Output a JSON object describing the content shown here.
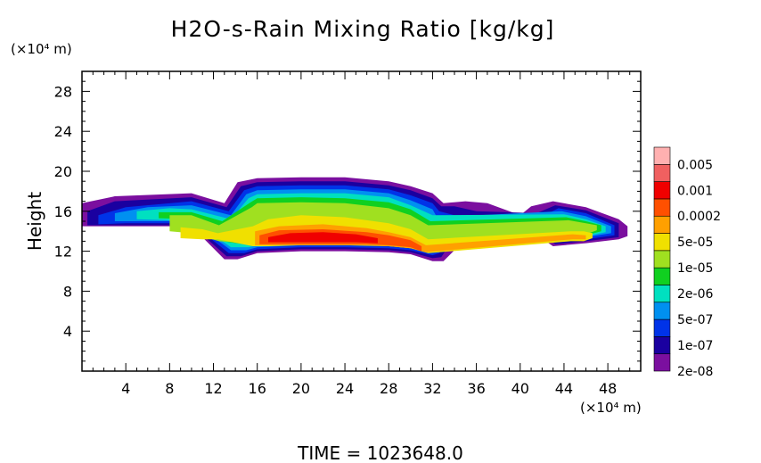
{
  "chart_data": {
    "type": "heatmap",
    "title": "H2O-s-Rain Mixing Ratio [kg/kg]",
    "ylabel": "Height",
    "xlabel": "",
    "x_unit": "(×10⁴ m)",
    "y_unit": "(×10⁴ m)",
    "xlim": [
      0,
      51
    ],
    "ylim": [
      0,
      30
    ],
    "xticks": [
      "4",
      "8",
      "12",
      "16",
      "20",
      "24",
      "28",
      "32",
      "36",
      "40",
      "44",
      "48"
    ],
    "yticks": [
      "4",
      "8",
      "12",
      "16",
      "20",
      "24",
      "28"
    ],
    "colorbar": {
      "labels": [
        "0.005",
        "0.001",
        "0.0002",
        "5e-05",
        "1e-05",
        "2e-06",
        "5e-07",
        "1e-07",
        "2e-08"
      ],
      "colors": [
        "#7b0f9f",
        "#1a00a0",
        "#0033e8",
        "#0090f0",
        "#00e0c0",
        "#10d020",
        "#a0e020",
        "#f0e000",
        "#ffa000",
        "#ff5000",
        "#f00000",
        "#f06060",
        "#ffb0b0"
      ]
    },
    "cloud_layers": [
      {
        "level": 0,
        "segments": [
          [
            0.0,
            14.5,
            16.8
          ],
          [
            3.0,
            14.5,
            17.5
          ],
          [
            10.0,
            14.5,
            17.8
          ],
          [
            13.0,
            11.2,
            16.8
          ],
          [
            14.2,
            11.2,
            18.9
          ],
          [
            16.0,
            11.8,
            19.3
          ],
          [
            20.0,
            12.0,
            19.4
          ],
          [
            24.0,
            12.0,
            19.4
          ],
          [
            28.0,
            11.9,
            19.0
          ],
          [
            30.0,
            11.7,
            18.5
          ],
          [
            32.0,
            11.0,
            17.8
          ],
          [
            33.0,
            11.0,
            16.8
          ],
          [
            35.0,
            13.2,
            17.0
          ],
          [
            37.0,
            14.0,
            16.8
          ],
          [
            40.0,
            14.0,
            15.6
          ],
          [
            41.0,
            14.0,
            16.5
          ],
          [
            43.0,
            12.5,
            17.0
          ],
          [
            46.0,
            12.8,
            16.4
          ],
          [
            49.0,
            13.2,
            15.2
          ],
          [
            49.8,
            13.5,
            14.5
          ]
        ]
      },
      {
        "level": 1,
        "segments": [
          [
            0.5,
            14.6,
            16.0
          ],
          [
            3.0,
            14.6,
            17.0
          ],
          [
            10.0,
            14.6,
            17.4
          ],
          [
            13.2,
            11.5,
            16.4
          ],
          [
            14.5,
            11.5,
            18.5
          ],
          [
            16.0,
            12.0,
            18.9
          ],
          [
            20.0,
            12.2,
            19.0
          ],
          [
            24.0,
            12.2,
            19.0
          ],
          [
            28.0,
            12.1,
            18.6
          ],
          [
            30.0,
            11.9,
            18.1
          ],
          [
            32.0,
            11.3,
            17.3
          ],
          [
            32.8,
            11.4,
            16.5
          ],
          [
            34.0,
            13.4,
            16.5
          ],
          [
            36.0,
            14.1,
            16.0
          ],
          [
            41.5,
            14.2,
            15.8
          ],
          [
            43.2,
            12.7,
            16.6
          ],
          [
            46.0,
            13.0,
            16.1
          ],
          [
            49.0,
            13.4,
            14.8
          ]
        ]
      },
      {
        "level": 2,
        "segments": [
          [
            1.5,
            14.7,
            15.6
          ],
          [
            4.0,
            14.8,
            16.4
          ],
          [
            10.0,
            14.8,
            17.0
          ],
          [
            13.4,
            11.8,
            16.0
          ],
          [
            14.8,
            11.8,
            18.1
          ],
          [
            16.0,
            12.2,
            18.5
          ],
          [
            20.0,
            12.4,
            18.6
          ],
          [
            24.0,
            12.4,
            18.6
          ],
          [
            28.0,
            12.3,
            18.2
          ],
          [
            30.0,
            12.1,
            17.6
          ],
          [
            32.0,
            11.6,
            16.8
          ],
          [
            32.6,
            11.8,
            16.0
          ],
          [
            34.0,
            13.6,
            15.6
          ],
          [
            42.0,
            14.4,
            15.5
          ],
          [
            43.5,
            12.9,
            16.3
          ],
          [
            46.0,
            13.2,
            15.8
          ],
          [
            48.6,
            13.6,
            14.6
          ]
        ]
      },
      {
        "level": 3,
        "segments": [
          [
            3.0,
            15.0,
            15.8
          ],
          [
            6.0,
            15.0,
            16.4
          ],
          [
            10.0,
            15.0,
            16.6
          ],
          [
            13.6,
            12.1,
            15.6
          ],
          [
            15.0,
            12.1,
            17.7
          ],
          [
            16.0,
            12.4,
            18.1
          ],
          [
            20.0,
            12.6,
            18.2
          ],
          [
            24.0,
            12.6,
            18.2
          ],
          [
            28.0,
            12.5,
            17.8
          ],
          [
            30.0,
            12.3,
            17.1
          ],
          [
            32.0,
            11.9,
            16.2
          ],
          [
            32.4,
            12.2,
            15.4
          ],
          [
            43.8,
            13.1,
            16.0
          ],
          [
            46.0,
            13.4,
            15.5
          ],
          [
            48.3,
            13.8,
            14.5
          ]
        ]
      },
      {
        "level": 4,
        "segments": [
          [
            5.0,
            15.2,
            16.0
          ],
          [
            8.0,
            15.1,
            16.3
          ],
          [
            10.0,
            15.1,
            16.2
          ],
          [
            13.6,
            12.4,
            15.2
          ],
          [
            15.2,
            12.4,
            17.3
          ],
          [
            16.0,
            12.6,
            17.7
          ],
          [
            20.0,
            12.8,
            17.8
          ],
          [
            24.0,
            12.8,
            17.8
          ],
          [
            28.0,
            12.7,
            17.4
          ],
          [
            30.0,
            12.5,
            16.6
          ],
          [
            32.0,
            12.2,
            15.6
          ],
          [
            44.0,
            13.3,
            15.7
          ],
          [
            46.0,
            13.5,
            15.2
          ],
          [
            47.8,
            13.9,
            14.5
          ]
        ]
      },
      {
        "level": 5,
        "segments": [
          [
            7.0,
            15.3,
            15.9
          ],
          [
            10.0,
            15.2,
            15.9
          ],
          [
            12.8,
            13.0,
            15.0
          ],
          [
            15.4,
            12.6,
            16.9
          ],
          [
            16.0,
            12.8,
            17.3
          ],
          [
            20.0,
            13.0,
            17.4
          ],
          [
            24.0,
            13.0,
            17.3
          ],
          [
            28.0,
            12.9,
            16.9
          ],
          [
            30.0,
            12.7,
            16.2
          ],
          [
            31.8,
            12.4,
            15.0
          ],
          [
            44.2,
            13.4,
            15.4
          ],
          [
            46.0,
            13.6,
            15.0
          ],
          [
            47.4,
            14.0,
            14.6
          ]
        ]
      },
      {
        "level": 6,
        "segments": [
          [
            8.0,
            14.0,
            15.6
          ],
          [
            10.0,
            13.8,
            15.6
          ],
          [
            12.5,
            13.0,
            14.6
          ],
          [
            15.5,
            12.8,
            16.4
          ],
          [
            16.0,
            12.9,
            16.8
          ],
          [
            20.0,
            13.1,
            16.9
          ],
          [
            24.0,
            13.1,
            16.8
          ],
          [
            28.0,
            13.0,
            16.3
          ],
          [
            30.0,
            12.9,
            15.6
          ],
          [
            31.6,
            12.6,
            14.6
          ],
          [
            44.4,
            13.5,
            15.1
          ],
          [
            46.0,
            13.7,
            14.8
          ],
          [
            47.0,
            14.1,
            14.6
          ]
        ]
      },
      {
        "level": 7,
        "segments": [
          [
            9.0,
            13.3,
            14.4
          ],
          [
            11.0,
            13.2,
            14.2
          ],
          [
            12.4,
            13.2,
            13.8
          ],
          [
            15.6,
            12.5,
            14.5
          ],
          [
            17.0,
            12.5,
            15.2
          ],
          [
            20.0,
            12.6,
            15.6
          ],
          [
            24.0,
            12.6,
            15.4
          ],
          [
            28.0,
            12.5,
            14.8
          ],
          [
            30.0,
            12.3,
            14.2
          ],
          [
            31.6,
            11.8,
            13.2
          ],
          [
            44.6,
            13.0,
            14.0
          ],
          [
            45.8,
            13.0,
            14.0
          ],
          [
            46.6,
            13.3,
            13.8
          ]
        ]
      },
      {
        "level": 8,
        "segments": [
          [
            15.8,
            12.6,
            14.0
          ],
          [
            18.0,
            12.6,
            14.5
          ],
          [
            22.0,
            12.6,
            14.7
          ],
          [
            26.0,
            12.6,
            14.3
          ],
          [
            28.0,
            12.5,
            13.9
          ],
          [
            30.0,
            12.3,
            13.4
          ],
          [
            31.4,
            11.9,
            12.6
          ],
          [
            44.8,
            13.2,
            13.7
          ],
          [
            46.0,
            13.2,
            13.6
          ]
        ]
      },
      {
        "level": 9,
        "segments": [
          [
            16.2,
            12.7,
            13.6
          ],
          [
            18.0,
            12.7,
            14.1
          ],
          [
            22.0,
            12.7,
            14.2
          ],
          [
            26.0,
            12.7,
            13.9
          ],
          [
            28.0,
            12.6,
            13.6
          ],
          [
            30.0,
            12.4,
            13.1
          ],
          [
            31.0,
            12.0,
            12.5
          ]
        ]
      },
      {
        "level": 10,
        "segments": [
          [
            17.0,
            12.9,
            13.4
          ],
          [
            19.0,
            12.9,
            13.8
          ],
          [
            22.0,
            12.9,
            13.9
          ],
          [
            25.0,
            12.9,
            13.7
          ],
          [
            27.0,
            12.8,
            13.3
          ]
        ]
      }
    ]
  },
  "footer": {
    "time_label": "TIME = 1023648.0"
  }
}
